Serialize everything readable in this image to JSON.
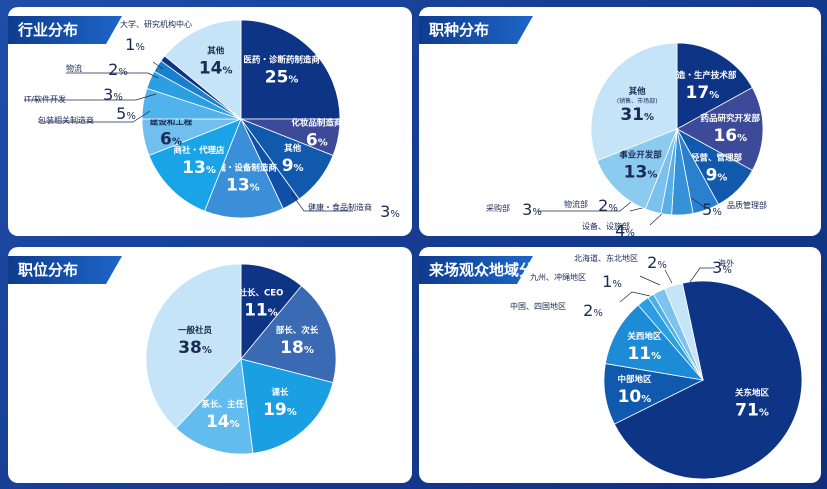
{
  "colors": {
    "page_background": "#173f95",
    "tab_gradient": [
      "#0e3c8e",
      "#1e66c8"
    ],
    "panel_background": "#ffffff"
  },
  "chart_data": [
    {
      "type": "pie",
      "title": "行业分布",
      "unit": "%",
      "slices": [
        {
          "label": "医药・诊断药制造商",
          "value": 25,
          "color": "#0e3585"
        },
        {
          "label": "化妆品制造商",
          "value": 6,
          "color": "#3c4a99"
        },
        {
          "label": "其他",
          "value": 9,
          "color": "#1059ad"
        },
        {
          "label": "健康・食品制造商",
          "value": 3,
          "color": "#0f4fa8"
        },
        {
          "label": "机械・设备制造商",
          "value": 13,
          "color": "#3a8fd8"
        },
        {
          "label": "商社・代理店",
          "value": 13,
          "color": "#18a4e6"
        },
        {
          "label": "建设和工程",
          "value": 6,
          "color": "#70bfee"
        },
        {
          "label": "包装相关制造商",
          "value": 5,
          "color": "#52b2ec"
        },
        {
          "label": "IT/软件开发",
          "value": 3,
          "color": "#2c9ee2"
        },
        {
          "label": "物流",
          "value": 2,
          "color": "#1a7fcc"
        },
        {
          "label": "大学、研究机构中心",
          "value": 1,
          "color": "#0e3585"
        },
        {
          "label": "其他",
          "value": 14,
          "color": "#c5e4f7"
        }
      ]
    },
    {
      "type": "pie",
      "title": "职种分布",
      "unit": "%",
      "slices": [
        {
          "label": "制造・生产技术部",
          "value": 17,
          "color": "#0e3585"
        },
        {
          "label": "药品研究开发部",
          "value": 16,
          "color": "#3c4a99"
        },
        {
          "label": "经营、管理部",
          "value": 9,
          "color": "#1059ad"
        },
        {
          "label": "品质管理部",
          "value": 5,
          "color": "#2a80cf"
        },
        {
          "label": "设备、设施部",
          "value": 4,
          "color": "#3592d9"
        },
        {
          "label": "物流部",
          "value": 2,
          "color": "#5aaee6"
        },
        {
          "label": "采购部",
          "value": 3,
          "color": "#7cc1ee"
        },
        {
          "label": "事业开发部",
          "value": 13,
          "color": "#8ccbf0"
        },
        {
          "label": "其他",
          "sublabel": "(销售、市场部)",
          "value": 31,
          "color": "#c5e4f7"
        }
      ]
    },
    {
      "type": "pie",
      "title": "职位分布",
      "unit": "%",
      "slices": [
        {
          "label": "社长、CEO",
          "value": 11,
          "color": "#0e3585"
        },
        {
          "label": "部长、次长",
          "value": 18,
          "color": "#3a6ab4"
        },
        {
          "label": "课长",
          "value": 19,
          "color": "#1a9fe3"
        },
        {
          "label": "系长、主任",
          "value": 14,
          "color": "#62bdee"
        },
        {
          "label": "一般社员",
          "value": 38,
          "color": "#c5e4f7"
        }
      ]
    },
    {
      "type": "pie",
      "title": "来场观众地域分布",
      "unit": "%",
      "slices": [
        {
          "label": "关东地区",
          "value": 71,
          "color": "#0e3585"
        },
        {
          "label": "中部地区",
          "value": 10,
          "color": "#1059ad"
        },
        {
          "label": "关西地区",
          "value": 11,
          "color": "#1d8bd6"
        },
        {
          "label": "中国、四国地区",
          "value": 2,
          "color": "#2c9ee2"
        },
        {
          "label": "九州、冲绳地区",
          "value": 1,
          "color": "#4aaee8"
        },
        {
          "label": "北海道、东北地区",
          "value": 2,
          "color": "#7cc4ef"
        },
        {
          "label": "海外",
          "value": 3,
          "color": "#c5e4f7"
        }
      ]
    }
  ]
}
